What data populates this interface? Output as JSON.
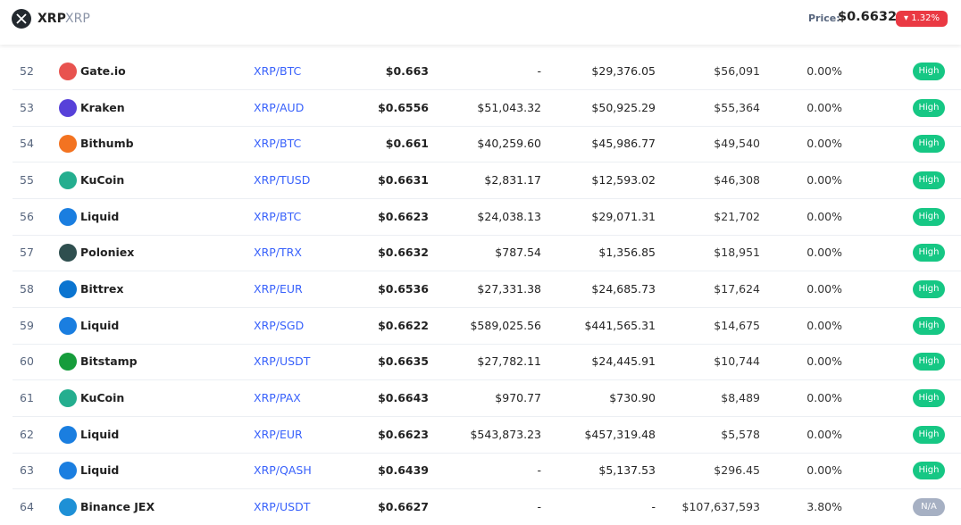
{
  "header": {
    "symbol": "XRP",
    "name": "XRP",
    "price_label": "Price:",
    "price": "$0.6632",
    "change": "1.32%",
    "change_color": "#ea3943"
  },
  "table": {
    "rows": [
      {
        "rank": 52,
        "exchange": "Gate.io",
        "icon_color": "#e8534f",
        "pair": "XRP/BTC",
        "price": "$0.663",
        "plus2": "-",
        "minus2": "$29,376.05",
        "volume": "$56,091",
        "volume_pct": "0.00%",
        "confidence": "High",
        "confidence_color": "#16c784"
      },
      {
        "rank": 53,
        "exchange": "Kraken",
        "icon_color": "#5741d9",
        "pair": "XRP/AUD",
        "price": "$0.6556",
        "plus2": "$51,043.32",
        "minus2": "$50,925.29",
        "volume": "$55,364",
        "volume_pct": "0.00%",
        "confidence": "High",
        "confidence_color": "#16c784"
      },
      {
        "rank": 54,
        "exchange": "Bithumb",
        "icon_color": "#f37321",
        "pair": "XRP/BTC",
        "price": "$0.661",
        "plus2": "$40,259.60",
        "minus2": "$45,986.77",
        "volume": "$49,540",
        "volume_pct": "0.00%",
        "confidence": "High",
        "confidence_color": "#16c784"
      },
      {
        "rank": 55,
        "exchange": "KuCoin",
        "icon_color": "#24ae8f",
        "pair": "XRP/TUSD",
        "price": "$0.6631",
        "plus2": "$2,831.17",
        "minus2": "$12,593.02",
        "volume": "$46,308",
        "volume_pct": "0.00%",
        "confidence": "High",
        "confidence_color": "#16c784"
      },
      {
        "rank": 56,
        "exchange": "Liquid",
        "icon_color": "#1a7ee0",
        "pair": "XRP/BTC",
        "price": "$0.6623",
        "plus2": "$24,038.13",
        "minus2": "$29,071.31",
        "volume": "$21,702",
        "volume_pct": "0.00%",
        "confidence": "High",
        "confidence_color": "#16c784"
      },
      {
        "rank": 57,
        "exchange": "Poloniex",
        "icon_color": "#2f4f4f",
        "pair": "XRP/TRX",
        "price": "$0.6632",
        "plus2": "$787.54",
        "minus2": "$1,356.85",
        "volume": "$18,951",
        "volume_pct": "0.00%",
        "confidence": "High",
        "confidence_color": "#16c784"
      },
      {
        "rank": 58,
        "exchange": "Bittrex",
        "icon_color": "#0a74d0",
        "pair": "XRP/EUR",
        "price": "$0.6536",
        "plus2": "$27,331.38",
        "minus2": "$24,685.73",
        "volume": "$17,624",
        "volume_pct": "0.00%",
        "confidence": "High",
        "confidence_color": "#16c784"
      },
      {
        "rank": 59,
        "exchange": "Liquid",
        "icon_color": "#1a7ee0",
        "pair": "XRP/SGD",
        "price": "$0.6622",
        "plus2": "$589,025.56",
        "minus2": "$441,565.31",
        "volume": "$14,675",
        "volume_pct": "0.00%",
        "confidence": "High",
        "confidence_color": "#16c784"
      },
      {
        "rank": 60,
        "exchange": "Bitstamp",
        "icon_color": "#169c3b",
        "pair": "XRP/USDT",
        "price": "$0.6635",
        "plus2": "$27,782.11",
        "minus2": "$24,445.91",
        "volume": "$10,744",
        "volume_pct": "0.00%",
        "confidence": "High",
        "confidence_color": "#16c784"
      },
      {
        "rank": 61,
        "exchange": "KuCoin",
        "icon_color": "#24ae8f",
        "pair": "XRP/PAX",
        "price": "$0.6643",
        "plus2": "$970.77",
        "minus2": "$730.90",
        "volume": "$8,489",
        "volume_pct": "0.00%",
        "confidence": "High",
        "confidence_color": "#16c784"
      },
      {
        "rank": 62,
        "exchange": "Liquid",
        "icon_color": "#1a7ee0",
        "pair": "XRP/EUR",
        "price": "$0.6623",
        "plus2": "$543,873.23",
        "minus2": "$457,319.48",
        "volume": "$5,578",
        "volume_pct": "0.00%",
        "confidence": "High",
        "confidence_color": "#16c784"
      },
      {
        "rank": 63,
        "exchange": "Liquid",
        "icon_color": "#1a7ee0",
        "pair": "XRP/QASH",
        "price": "$0.6439",
        "plus2": "-",
        "minus2": "$5,137.53",
        "volume": "$296.45",
        "volume_pct": "0.00%",
        "confidence": "High",
        "confidence_color": "#16c784"
      },
      {
        "rank": 64,
        "exchange": "Binance JEX",
        "icon_color": "#1e90d6",
        "pair": "XRP/USDT",
        "price": "$0.6627",
        "plus2": "-",
        "minus2": "-",
        "volume": "$107,637,593",
        "volume_pct": "3.80%",
        "confidence": "N/A",
        "confidence_color": "#a6b0c3"
      }
    ]
  }
}
